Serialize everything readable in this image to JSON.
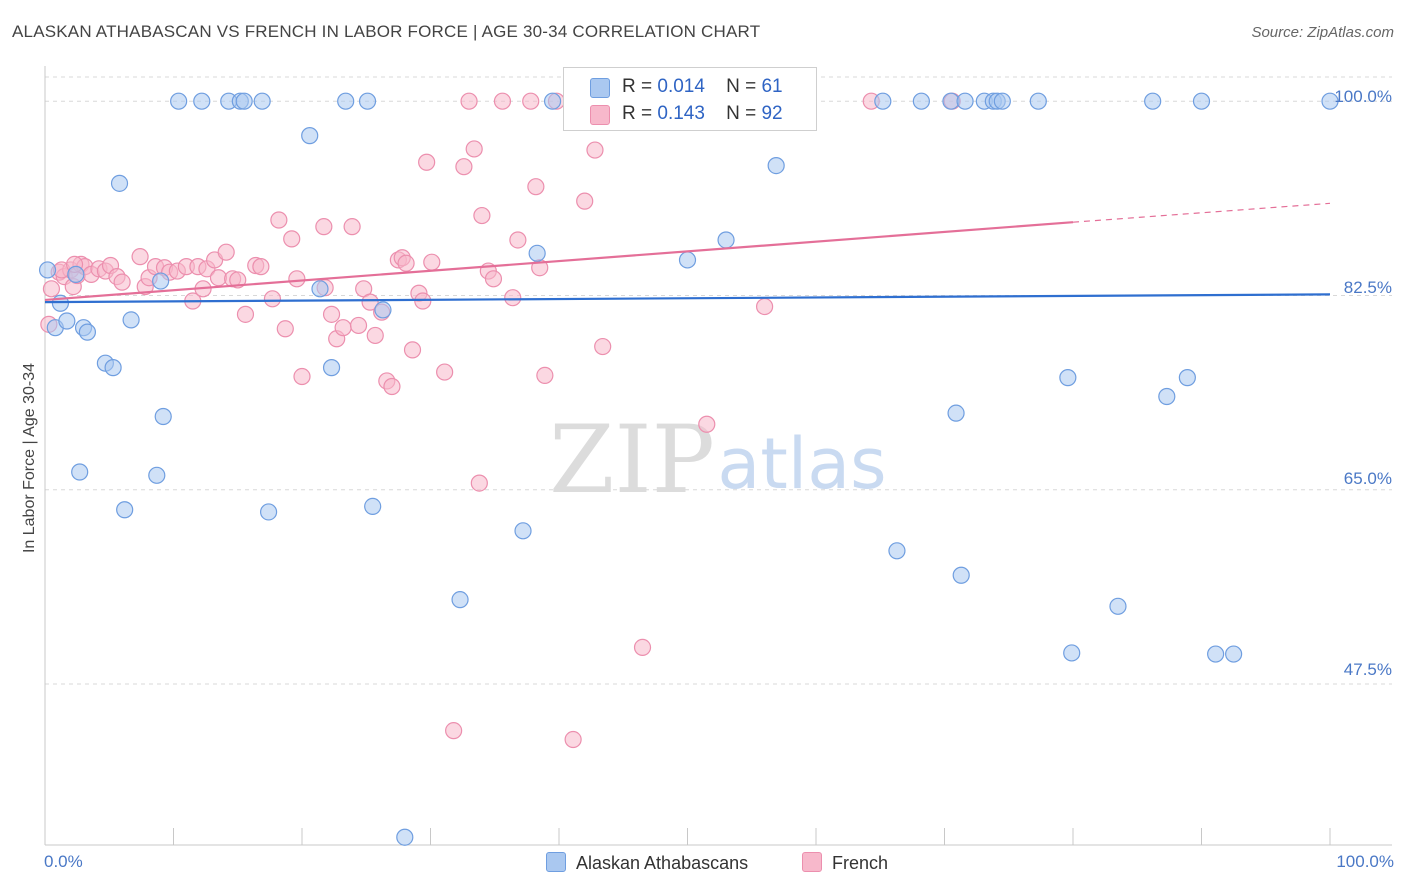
{
  "title": "ALASKAN ATHABASCAN VS FRENCH IN LABOR FORCE | AGE 30-34 CORRELATION CHART",
  "source": "Source: ZipAtlas.com",
  "watermark": {
    "zip": "ZIP",
    "atlas": "atlas"
  },
  "colors": {
    "blue_fill": "#aac8f0",
    "blue_stroke": "#6f9ee0",
    "blue_line": "#2f6fd0",
    "pink_fill": "#f7b8cb",
    "pink_stroke": "#ec8fae",
    "pink_line": "#e46f98",
    "grid": "#d8d8d8",
    "tick_text": "#4a78c6"
  },
  "legend": {
    "r_label": "R =",
    "n_label": "N =",
    "blue": {
      "r": "0.014",
      "n": "61"
    },
    "pink": {
      "r": "0.143",
      "n": "92"
    }
  },
  "bottom_legend": {
    "blue": "Alaskan Athabascans",
    "pink": "French"
  },
  "chart_data": {
    "type": "scatter",
    "title": "ALASKAN ATHABASCAN VS FRENCH IN LABOR FORCE | AGE 30-34 CORRELATION CHART",
    "xlabel": "",
    "ylabel": "In Labor Force | Age 30-34",
    "xlim": [
      0,
      100
    ],
    "ylim": [
      33,
      102
    ],
    "x_tick_labels": [
      "0.0%",
      "100.0%"
    ],
    "y_ticks": [
      47.5,
      65.0,
      82.5,
      100.0
    ],
    "y_tick_labels": [
      "47.5%",
      "65.0%",
      "82.5%",
      "100.0%"
    ],
    "series": [
      {
        "name": "Alaskan Athabascans",
        "color": "blue",
        "r": 0.014,
        "n": 61,
        "trend": {
          "x": [
            0,
            100
          ],
          "y": [
            81.9,
            82.6
          ]
        },
        "points": [
          [
            0.2,
            84.8
          ],
          [
            0.8,
            79.6
          ],
          [
            1.2,
            81.8
          ],
          [
            1.7,
            80.2
          ],
          [
            2.4,
            84.4
          ],
          [
            2.7,
            66.6
          ],
          [
            3.0,
            79.6
          ],
          [
            3.3,
            79.2
          ],
          [
            4.7,
            76.4
          ],
          [
            5.3,
            76.0
          ],
          [
            5.8,
            92.6
          ],
          [
            6.2,
            63.2
          ],
          [
            6.7,
            80.3
          ],
          [
            9.0,
            83.8
          ],
          [
            8.7,
            66.3
          ],
          [
            9.2,
            71.6
          ],
          [
            10.4,
            100.0
          ],
          [
            12.2,
            100.0
          ],
          [
            14.3,
            100.0
          ],
          [
            15.2,
            100.0
          ],
          [
            15.5,
            100.0
          ],
          [
            16.9,
            100.0
          ],
          [
            17.4,
            63.0
          ],
          [
            20.6,
            96.9
          ],
          [
            21.4,
            83.1
          ],
          [
            22.3,
            76.0
          ],
          [
            23.4,
            100.0
          ],
          [
            25.1,
            100.0
          ],
          [
            25.5,
            63.5
          ],
          [
            26.3,
            81.2
          ],
          [
            28.0,
            33.7
          ],
          [
            32.3,
            55.1
          ],
          [
            37.2,
            61.3
          ],
          [
            38.3,
            86.3
          ],
          [
            39.5,
            100.0
          ],
          [
            43.9,
            100.0
          ],
          [
            50.0,
            85.7
          ],
          [
            53.0,
            87.5
          ],
          [
            56.9,
            94.2
          ],
          [
            65.2,
            100.0
          ],
          [
            66.3,
            59.5
          ],
          [
            68.2,
            100.0
          ],
          [
            70.5,
            100.0
          ],
          [
            70.9,
            71.9
          ],
          [
            71.3,
            57.3
          ],
          [
            71.6,
            100.0
          ],
          [
            73.1,
            100.0
          ],
          [
            73.8,
            100.0
          ],
          [
            74.1,
            100.0
          ],
          [
            74.5,
            100.0
          ],
          [
            77.3,
            100.0
          ],
          [
            79.6,
            75.1
          ],
          [
            79.9,
            50.3
          ],
          [
            83.5,
            54.5
          ],
          [
            86.2,
            100.0
          ],
          [
            87.3,
            73.4
          ],
          [
            88.9,
            75.1
          ],
          [
            90.0,
            100.0
          ],
          [
            91.1,
            50.2
          ],
          [
            92.5,
            50.2
          ],
          [
            100.0,
            100.0
          ]
        ]
      },
      {
        "name": "French",
        "color": "pink",
        "r": 0.143,
        "n": 92,
        "trend": {
          "x": [
            0,
            80
          ],
          "y": [
            82.1,
            89.1
          ]
        },
        "trend_dashed": {
          "x": [
            80,
            100
          ],
          "y": [
            89.1,
            90.8
          ]
        },
        "points": [
          [
            0.3,
            79.9
          ],
          [
            0.5,
            83.1
          ],
          [
            1.1,
            84.6
          ],
          [
            1.5,
            84.2
          ],
          [
            2.0,
            84.8
          ],
          [
            2.2,
            83.3
          ],
          [
            2.5,
            84.3
          ],
          [
            2.8,
            85.3
          ],
          [
            3.1,
            85.1
          ],
          [
            3.6,
            84.4
          ],
          [
            4.2,
            84.9
          ],
          [
            4.7,
            84.7
          ],
          [
            5.1,
            85.2
          ],
          [
            5.6,
            84.2
          ],
          [
            6.0,
            83.7
          ],
          [
            7.4,
            86.0
          ],
          [
            7.8,
            83.3
          ],
          [
            8.1,
            84.1
          ],
          [
            8.6,
            85.1
          ],
          [
            9.3,
            85.0
          ],
          [
            9.7,
            84.6
          ],
          [
            10.3,
            84.7
          ],
          [
            11.0,
            85.1
          ],
          [
            11.5,
            82.0
          ],
          [
            11.9,
            85.1
          ],
          [
            12.3,
            83.1
          ],
          [
            12.6,
            84.9
          ],
          [
            13.2,
            85.7
          ],
          [
            13.5,
            84.1
          ],
          [
            14.1,
            86.4
          ],
          [
            14.6,
            84.0
          ],
          [
            15.0,
            83.9
          ],
          [
            15.6,
            80.8
          ],
          [
            16.4,
            85.2
          ],
          [
            16.8,
            85.1
          ],
          [
            17.7,
            82.2
          ],
          [
            18.2,
            89.3
          ],
          [
            18.7,
            79.5
          ],
          [
            19.2,
            87.6
          ],
          [
            19.6,
            84.0
          ],
          [
            20.0,
            75.2
          ],
          [
            21.7,
            88.7
          ],
          [
            21.8,
            83.2
          ],
          [
            22.3,
            80.8
          ],
          [
            22.7,
            78.6
          ],
          [
            23.2,
            79.6
          ],
          [
            23.9,
            88.7
          ],
          [
            24.4,
            79.8
          ],
          [
            24.8,
            83.1
          ],
          [
            25.3,
            81.9
          ],
          [
            25.7,
            78.9
          ],
          [
            26.2,
            81.0
          ],
          [
            26.6,
            74.8
          ],
          [
            27.0,
            74.3
          ],
          [
            27.5,
            85.7
          ],
          [
            27.8,
            85.9
          ],
          [
            28.1,
            85.4
          ],
          [
            28.6,
            77.6
          ],
          [
            29.1,
            82.7
          ],
          [
            29.4,
            82.0
          ],
          [
            29.7,
            94.5
          ],
          [
            30.1,
            85.5
          ],
          [
            31.1,
            75.6
          ],
          [
            32.6,
            94.1
          ],
          [
            33.0,
            100.0
          ],
          [
            33.4,
            95.7
          ],
          [
            33.8,
            65.6
          ],
          [
            31.8,
            43.3
          ],
          [
            34.0,
            89.7
          ],
          [
            34.5,
            84.7
          ],
          [
            34.9,
            84.0
          ],
          [
            35.6,
            100.0
          ],
          [
            36.4,
            82.3
          ],
          [
            36.8,
            87.5
          ],
          [
            37.8,
            100.0
          ],
          [
            38.2,
            92.3
          ],
          [
            38.5,
            85.0
          ],
          [
            38.9,
            75.3
          ],
          [
            39.8,
            100.0
          ],
          [
            41.1,
            42.5
          ],
          [
            42.0,
            91.0
          ],
          [
            42.4,
            100.0
          ],
          [
            42.8,
            95.6
          ],
          [
            43.4,
            77.9
          ],
          [
            46.5,
            50.8
          ],
          [
            48.2,
            100.0
          ],
          [
            51.5,
            70.9
          ],
          [
            56.0,
            81.5
          ],
          [
            64.3,
            100.0
          ],
          [
            70.6,
            100.0
          ],
          [
            1.3,
            84.8
          ],
          [
            2.3,
            85.3
          ]
        ]
      }
    ]
  }
}
